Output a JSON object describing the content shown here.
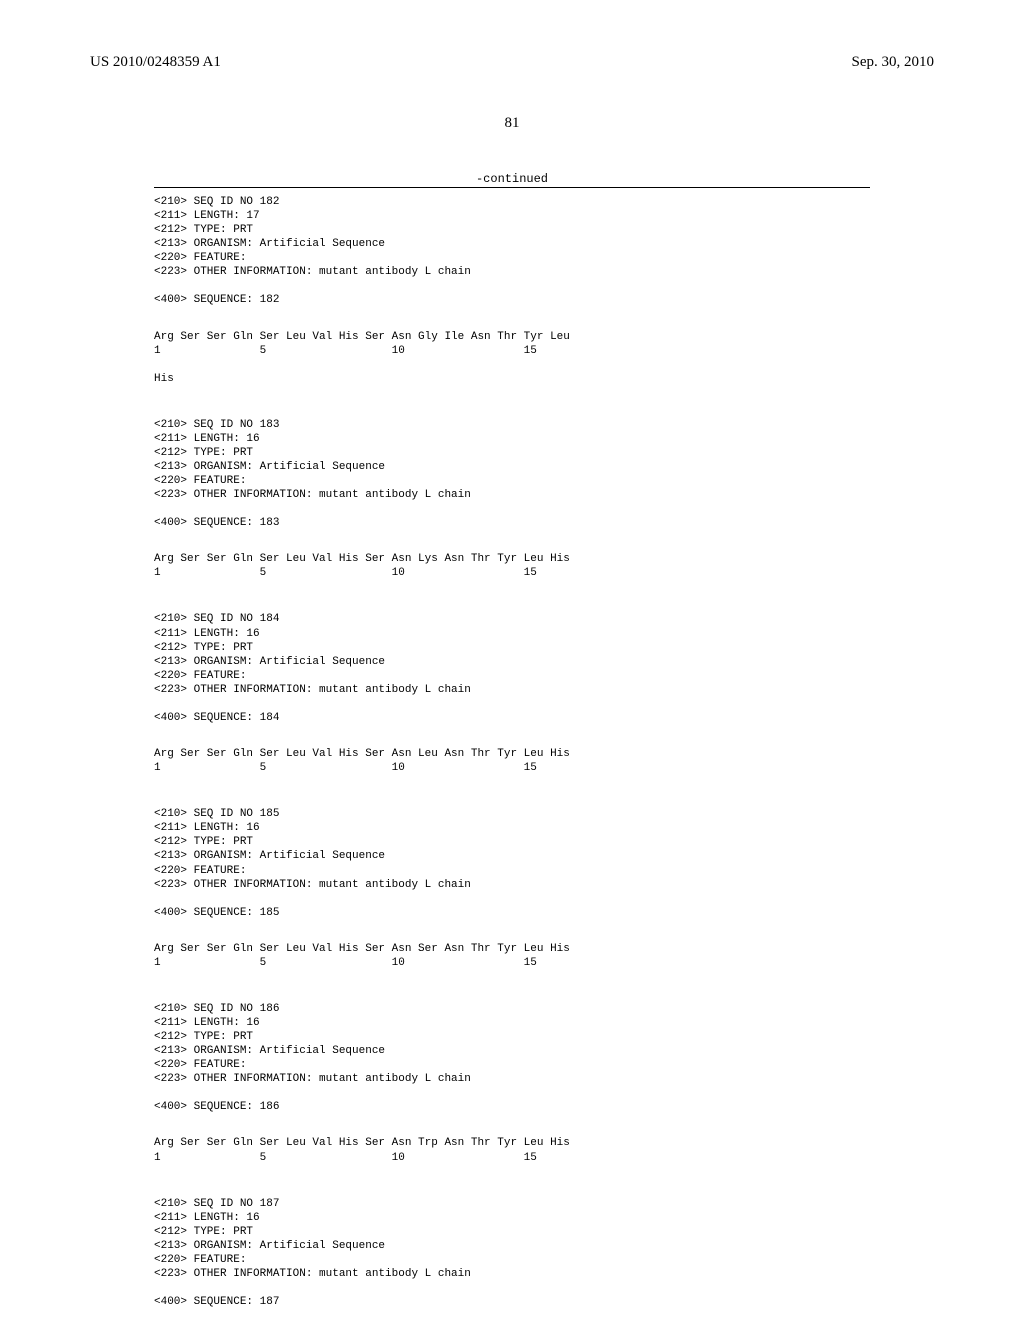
{
  "header": {
    "publication_number": "US 2010/0248359 A1",
    "publication_date": "Sep. 30, 2010"
  },
  "page_number": "81",
  "continued_label": "-continued",
  "sequences": [
    {
      "seq_id_line": "<210> SEQ ID NO 182",
      "length_line": "<211> LENGTH: 17",
      "type_line": "<212> TYPE: PRT",
      "organism_line": "<213> ORGANISM: Artificial Sequence",
      "feature_line": "<220> FEATURE:",
      "other_info_line": "<223> OTHER INFORMATION: mutant antibody L chain",
      "sequence_label": "<400> SEQUENCE: 182",
      "residues_line": "Arg Ser Ser Gln Ser Leu Val His Ser Asn Gly Ile Asn Thr Tyr Leu",
      "numbers_line": "1               5                   10                  15",
      "extra_residue": "His"
    },
    {
      "seq_id_line": "<210> SEQ ID NO 183",
      "length_line": "<211> LENGTH: 16",
      "type_line": "<212> TYPE: PRT",
      "organism_line": "<213> ORGANISM: Artificial Sequence",
      "feature_line": "<220> FEATURE:",
      "other_info_line": "<223> OTHER INFORMATION: mutant antibody L chain",
      "sequence_label": "<400> SEQUENCE: 183",
      "residues_line": "Arg Ser Ser Gln Ser Leu Val His Ser Asn Lys Asn Thr Tyr Leu His",
      "numbers_line": "1               5                   10                  15",
      "extra_residue": ""
    },
    {
      "seq_id_line": "<210> SEQ ID NO 184",
      "length_line": "<211> LENGTH: 16",
      "type_line": "<212> TYPE: PRT",
      "organism_line": "<213> ORGANISM: Artificial Sequence",
      "feature_line": "<220> FEATURE:",
      "other_info_line": "<223> OTHER INFORMATION: mutant antibody L chain",
      "sequence_label": "<400> SEQUENCE: 184",
      "residues_line": "Arg Ser Ser Gln Ser Leu Val His Ser Asn Leu Asn Thr Tyr Leu His",
      "numbers_line": "1               5                   10                  15",
      "extra_residue": ""
    },
    {
      "seq_id_line": "<210> SEQ ID NO 185",
      "length_line": "<211> LENGTH: 16",
      "type_line": "<212> TYPE: PRT",
      "organism_line": "<213> ORGANISM: Artificial Sequence",
      "feature_line": "<220> FEATURE:",
      "other_info_line": "<223> OTHER INFORMATION: mutant antibody L chain",
      "sequence_label": "<400> SEQUENCE: 185",
      "residues_line": "Arg Ser Ser Gln Ser Leu Val His Ser Asn Ser Asn Thr Tyr Leu His",
      "numbers_line": "1               5                   10                  15",
      "extra_residue": ""
    },
    {
      "seq_id_line": "<210> SEQ ID NO 186",
      "length_line": "<211> LENGTH: 16",
      "type_line": "<212> TYPE: PRT",
      "organism_line": "<213> ORGANISM: Artificial Sequence",
      "feature_line": "<220> FEATURE:",
      "other_info_line": "<223> OTHER INFORMATION: mutant antibody L chain",
      "sequence_label": "<400> SEQUENCE: 186",
      "residues_line": "Arg Ser Ser Gln Ser Leu Val His Ser Asn Trp Asn Thr Tyr Leu His",
      "numbers_line": "1               5                   10                  15",
      "extra_residue": ""
    },
    {
      "seq_id_line": "<210> SEQ ID NO 187",
      "length_line": "<211> LENGTH: 16",
      "type_line": "<212> TYPE: PRT",
      "organism_line": "<213> ORGANISM: Artificial Sequence",
      "feature_line": "<220> FEATURE:",
      "other_info_line": "<223> OTHER INFORMATION: mutant antibody L chain",
      "sequence_label": "<400> SEQUENCE: 187",
      "residues_line": "",
      "numbers_line": "",
      "extra_residue": ""
    }
  ]
}
